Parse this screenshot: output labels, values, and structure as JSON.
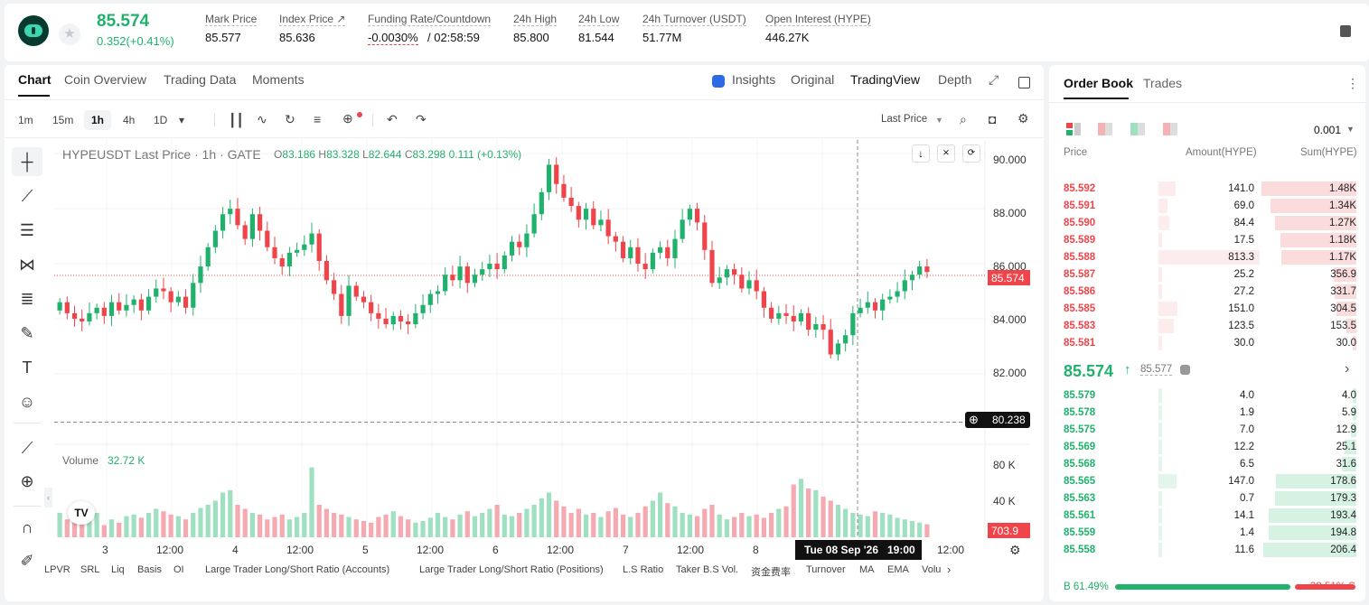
{
  "header": {
    "last_price": "85.574",
    "change": "0.352(+0.41%)",
    "stats": [
      {
        "label": "Mark Price",
        "value": "85.577"
      },
      {
        "label": "Index Price ↗",
        "value": "85.636"
      },
      {
        "label": "Funding Rate/Countdown",
        "value_red": "-0.0030%",
        "value": "/ 02:58:59"
      },
      {
        "label": "24h High",
        "value": "85.800"
      },
      {
        "label": "24h Low",
        "value": "81.544"
      },
      {
        "label": "24h Turnover (USDT)",
        "value": "51.77M"
      },
      {
        "label": "Open Interest (HYPE)",
        "value": "446.27K"
      }
    ]
  },
  "chart_tabs": [
    "Chart",
    "Coin Overview",
    "Trading Data",
    "Moments"
  ],
  "view_tabs": [
    "Insights",
    "Original",
    "TradingView",
    "Depth"
  ],
  "timeframes": [
    "1m",
    "15m",
    "1h",
    "4h",
    "1D"
  ],
  "price_type": "Last Price",
  "legend": {
    "symbol": "HYPEUSDT Last Price · 1h · GATE",
    "o_label": "O",
    "o": "83.186",
    "h_label": "H",
    "h": "83.328",
    "l_label": "L",
    "l": "82.644",
    "c_label": "C",
    "c": "83.298",
    "chg": "0.111 (+0.13%)"
  },
  "volume_label": "Volume",
  "volume_value": "32.72 K",
  "y_ticks": [
    "90.000",
    "88.000",
    "86.000",
    "84.000",
    "82.000"
  ],
  "vol_ticks": [
    "80 K",
    "40 K"
  ],
  "current_price_tag": "85.574",
  "crosshair_price": "80.238",
  "volume_tag": "703.9",
  "x_ticks": [
    "3",
    "12:00",
    "4",
    "12:00",
    "5",
    "12:00",
    "6",
    "12:00",
    "7",
    "12:00",
    "8",
    "12:00"
  ],
  "crosshair_time": "Tue 08 Sep '26   19:00",
  "indicators": [
    "LPVR",
    "SRL",
    "Liq",
    "Basis",
    "OI",
    "Large Trader Long/Short Ratio (Accounts)",
    "Large Trader Long/Short Ratio (Positions)",
    "L.S Ratio",
    "Taker B.S Vol.",
    "资金费率",
    "Turnover",
    "MA",
    "EMA",
    "Volu"
  ],
  "chart_data": {
    "type": "candlestick",
    "series_color_up": "#20b26c",
    "series_color_down": "#ef454a",
    "ylim": [
      79.5,
      90.5
    ],
    "closes": [
      84.6,
      84.2,
      84.0,
      83.9,
      84.2,
      84.4,
      84.1,
      84.6,
      84.3,
      84.5,
      84.7,
      84.3,
      84.8,
      85.1,
      85.0,
      84.6,
      84.8,
      84.4,
      85.3,
      85.9,
      86.6,
      87.2,
      87.8,
      88.0,
      87.4,
      86.9,
      87.8,
      87.2,
      86.6,
      86.2,
      85.9,
      86.4,
      86.5,
      86.7,
      87.1,
      86.1,
      85.4,
      84.9,
      84.1,
      85.2,
      84.8,
      84.6,
      84.2,
      84.0,
      83.8,
      84.1,
      83.9,
      83.8,
      84.2,
      84.5,
      84.9,
      85.0,
      85.6,
      85.4,
      85.9,
      85.3,
      85.6,
      85.8,
      86.0,
      85.8,
      86.3,
      86.8,
      86.6,
      87.1,
      87.8,
      88.6,
      89.6,
      88.9,
      88.4,
      88.1,
      87.6,
      88.0,
      87.4,
      87.6,
      87.0,
      86.8,
      86.2,
      86.6,
      86.0,
      85.8,
      86.4,
      86.6,
      86.2,
      86.9,
      87.6,
      88.0,
      87.5,
      86.5,
      85.3,
      85.5,
      85.8,
      85.6,
      85.1,
      85.4,
      85.0,
      84.4,
      84.0,
      84.2,
      84.1,
      83.9,
      84.2,
      83.6,
      83.8,
      83.6,
      82.7,
      83.1,
      83.4,
      84.2,
      84.4,
      84.6,
      84.3,
      84.7,
      84.8,
      85.0,
      85.4,
      85.6,
      85.9,
      85.7
    ],
    "volumes_k": [
      30,
      22,
      18,
      25,
      20,
      30,
      15,
      22,
      18,
      26,
      28,
      24,
      30,
      35,
      32,
      28,
      26,
      22,
      30,
      36,
      40,
      45,
      55,
      58,
      40,
      35,
      30,
      28,
      22,
      25,
      28,
      22,
      25,
      30,
      86,
      40,
      35,
      30,
      28,
      25,
      22,
      20,
      18,
      25,
      28,
      32,
      26,
      22,
      18,
      20,
      24,
      30,
      25,
      22,
      28,
      32,
      26,
      30,
      35,
      40,
      28,
      26,
      30,
      35,
      40,
      48,
      55,
      45,
      38,
      30,
      35,
      28,
      30,
      25,
      32,
      36,
      28,
      25,
      30,
      38,
      45,
      55,
      42,
      38,
      30,
      28,
      26,
      35,
      40,
      28,
      22,
      25,
      30,
      26,
      28,
      24,
      30,
      35,
      38,
      65,
      72,
      60,
      58,
      50,
      45,
      40,
      35,
      30,
      28,
      26,
      32,
      30,
      28,
      24,
      22,
      20,
      18,
      16
    ]
  },
  "orderbook": {
    "tabs": [
      "Order Book",
      "Trades"
    ],
    "precision": "0.001",
    "headers": [
      "Price",
      "Amount(HYPE)",
      "Sum(HYPE)"
    ],
    "asks": [
      [
        "85.592",
        "141.0",
        "1.48K"
      ],
      [
        "85.591",
        "69.0",
        "1.34K"
      ],
      [
        "85.590",
        "84.4",
        "1.27K"
      ],
      [
        "85.589",
        "17.5",
        "1.18K"
      ],
      [
        "85.588",
        "813.3",
        "1.17K"
      ],
      [
        "85.587",
        "25.2",
        "356.9"
      ],
      [
        "85.586",
        "27.2",
        "331.7"
      ],
      [
        "85.585",
        "151.0",
        "304.5"
      ],
      [
        "85.583",
        "123.5",
        "153.5"
      ],
      [
        "85.581",
        "30.0",
        "30.0"
      ]
    ],
    "mid_price": "85.574",
    "mark_price": "85.577",
    "bids": [
      [
        "85.579",
        "4.0",
        "4.0"
      ],
      [
        "85.578",
        "1.9",
        "5.9"
      ],
      [
        "85.575",
        "7.0",
        "12.9"
      ],
      [
        "85.569",
        "12.2",
        "25.1"
      ],
      [
        "85.568",
        "6.5",
        "31.6"
      ],
      [
        "85.565",
        "147.0",
        "178.6"
      ],
      [
        "85.563",
        "0.7",
        "179.3"
      ],
      [
        "85.561",
        "14.1",
        "193.4"
      ],
      [
        "85.559",
        "1.4",
        "194.8"
      ],
      [
        "85.558",
        "11.6",
        "206.4"
      ]
    ],
    "buy_ratio": "B 61.49%",
    "sell_ratio": "38.51% S"
  }
}
